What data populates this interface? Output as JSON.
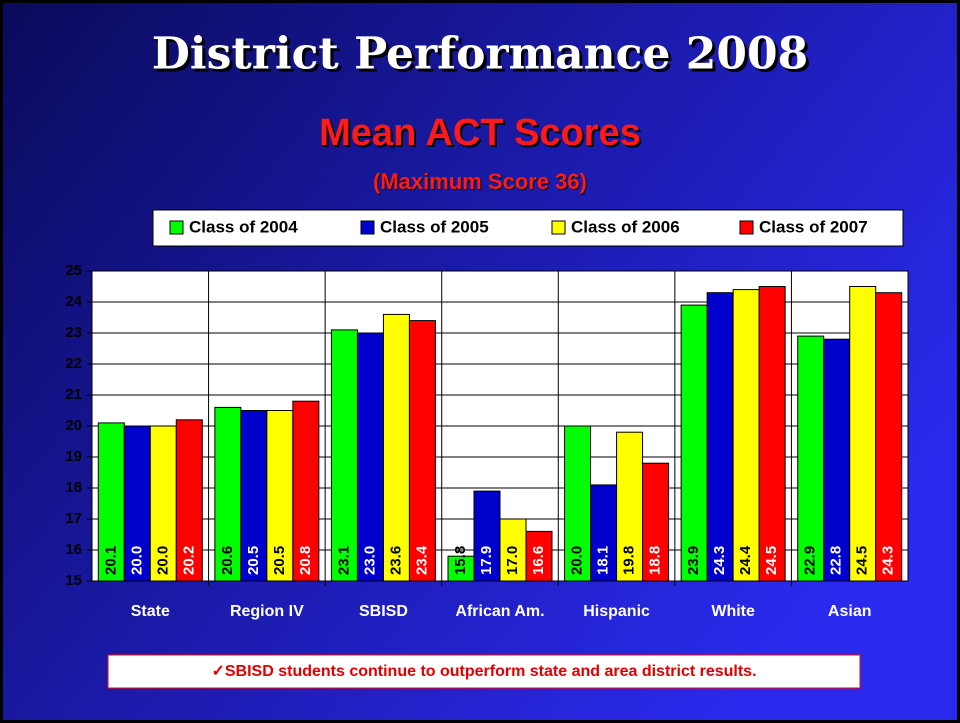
{
  "chart_data": {
    "type": "bar",
    "title": "District Performance 2008",
    "subtitle": "Mean ACT Scores",
    "subtitle2": "(Maximum Score 36)",
    "annotation": "✓SBISD students continue to outperform state and area district results.",
    "categories": [
      "State",
      "Region IV",
      "SBISD",
      "African Am.",
      "Hispanic",
      "White",
      "Asian"
    ],
    "series": [
      {
        "name": "Class of 2004",
        "color": "#00ff00",
        "label_color": "#000000",
        "values": [
          20.1,
          20.6,
          23.1,
          15.8,
          20.0,
          23.9,
          22.9
        ],
        "value_labels": [
          "20.1",
          "20.6",
          "23.1",
          "15.8",
          "20.0",
          "23.9",
          "22.9"
        ]
      },
      {
        "name": "Class of 2005",
        "color": "#0000cc",
        "label_color": "#ffffff",
        "values": [
          20.0,
          20.5,
          23.0,
          17.9,
          18.1,
          24.3,
          22.8
        ],
        "value_labels": [
          "20.0",
          "20.5",
          "23.0",
          "17.9",
          "18.1",
          "24.3",
          "22.8"
        ]
      },
      {
        "name": "Class of 2006",
        "color": "#ffff00",
        "label_color": "#000000",
        "values": [
          20.0,
          20.5,
          23.6,
          17.0,
          19.8,
          24.4,
          24.5
        ],
        "value_labels": [
          "20.0",
          "20.5",
          "23.6",
          "17.0",
          "19.8",
          "24.4",
          "24.5"
        ]
      },
      {
        "name": "Class of 2007",
        "color": "#ff0000",
        "label_color": "#ffffff",
        "values": [
          20.2,
          20.8,
          23.4,
          16.6,
          18.8,
          24.5,
          24.3
        ],
        "value_labels": [
          "20.2",
          "20.8",
          "23.4",
          "16.6",
          "18.8",
          "24.5",
          "24.3"
        ]
      }
    ],
    "ylim": [
      15,
      25
    ],
    "yticks": [
      15,
      16,
      17,
      18,
      19,
      20,
      21,
      22,
      23,
      24,
      25
    ],
    "grid": true
  }
}
